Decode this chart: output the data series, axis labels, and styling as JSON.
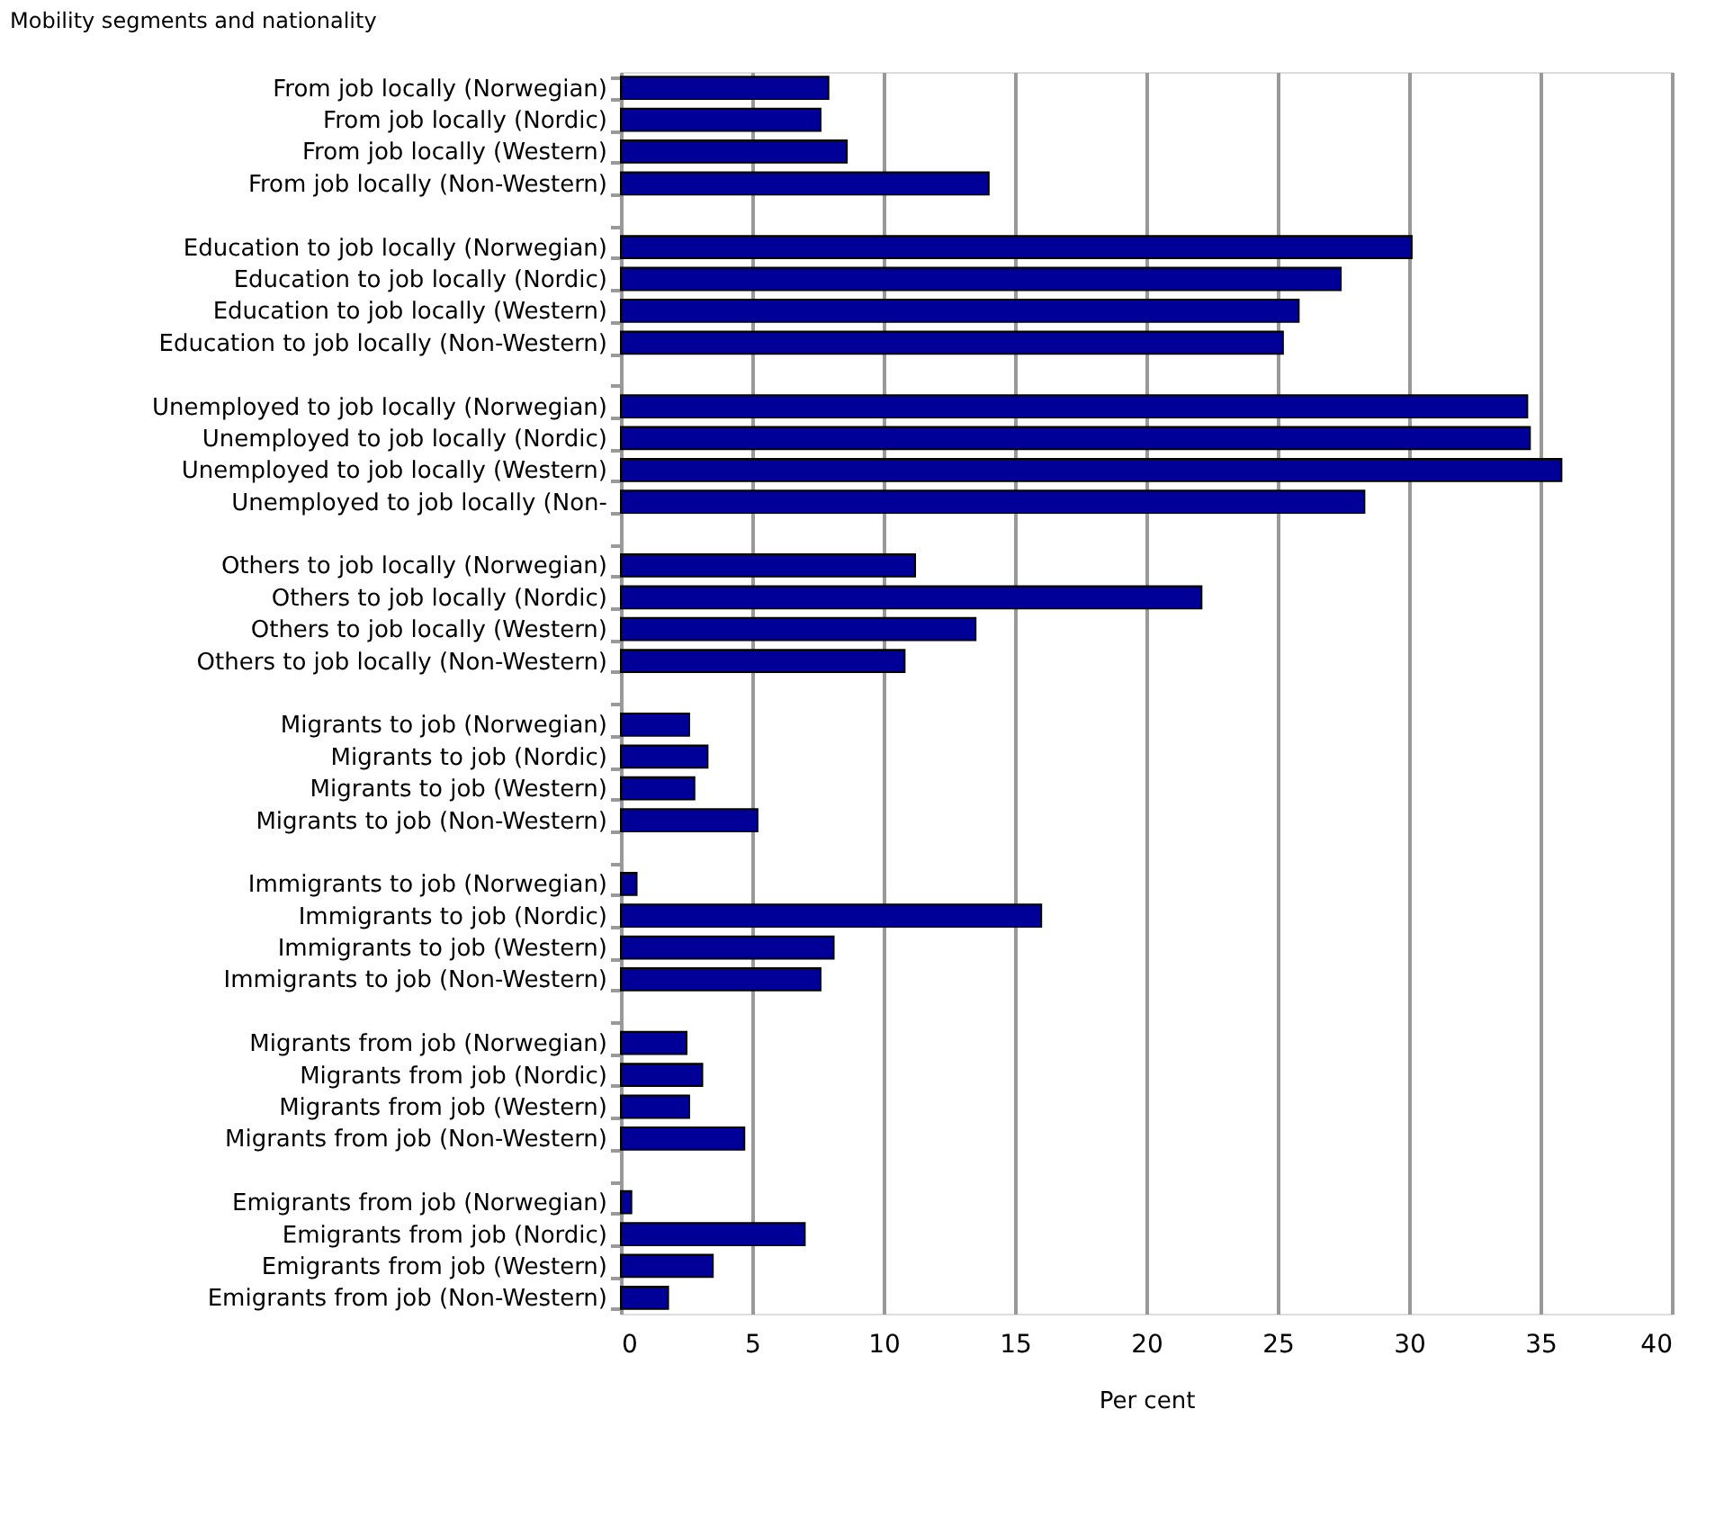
{
  "chart_data": {
    "type": "bar",
    "orientation": "horizontal",
    "ylabel": "Mobility segments and nationality",
    "xlabel": "Per cent",
    "categories": [
      "From job locally (Norwegian)",
      "From job locally (Nordic)",
      "From job locally (Western)",
      "From job locally (Non-Western)",
      null,
      "Education to job locally (Norwegian)",
      "Education to job locally (Nordic)",
      "Education to job locally (Western)",
      "Education to job locally (Non-Western)",
      null,
      "Unemployed to job locally (Norwegian)",
      "Unemployed to job locally (Nordic)",
      "Unemployed to job locally (Western)",
      "Unemployed to job locally (Non-",
      null,
      "Others to job locally (Norwegian)",
      "Others to job locally (Nordic)",
      "Others to job locally (Western)",
      "Others to job locally (Non-Western)",
      null,
      "Migrants to job (Norwegian)",
      "Migrants to job (Nordic)",
      "Migrants to job (Western)",
      "Migrants to job (Non-Western)",
      null,
      "Immigrants to job (Norwegian)",
      "Immigrants to job (Nordic)",
      "Immigrants to job (Western)",
      "Immigrants to job (Non-Western)",
      null,
      "Migrants from job (Norwegian)",
      "Migrants from job (Nordic)",
      "Migrants from job (Western)",
      "Migrants from job (Non-Western)",
      null,
      "Emigrants from job (Norwegian)",
      "Emigrants from job (Nordic)",
      "Emigrants from job (Western)",
      "Emigrants from job (Non-Western)"
    ],
    "values": [
      7.9,
      7.6,
      8.6,
      14.0,
      null,
      30.1,
      27.4,
      25.8,
      25.2,
      null,
      34.5,
      34.6,
      35.8,
      28.3,
      null,
      11.2,
      22.1,
      13.5,
      10.8,
      null,
      2.6,
      3.3,
      2.8,
      5.2,
      null,
      0.6,
      16.0,
      8.1,
      7.6,
      null,
      2.5,
      3.1,
      2.6,
      4.7,
      null,
      0.4,
      7.0,
      3.5,
      1.8
    ],
    "color": "#000099",
    "xlim": [
      0,
      40
    ],
    "xticks": [
      0,
      5,
      10,
      15,
      20,
      25,
      30,
      35,
      40
    ],
    "grid": "x"
  }
}
